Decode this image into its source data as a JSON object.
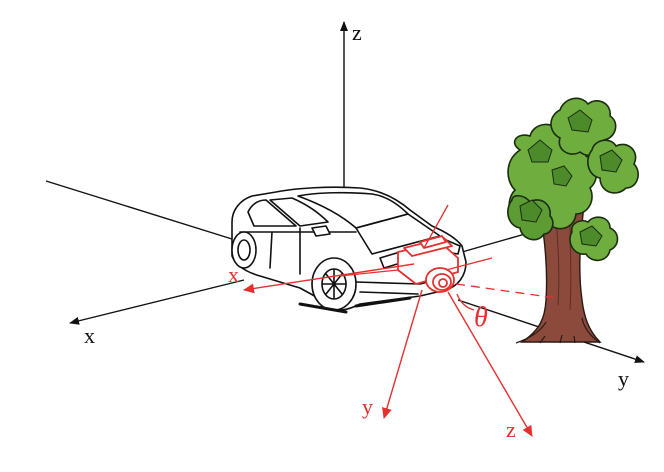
{
  "figure": {
    "world_axes": {
      "x_label": "x",
      "y_label": "y",
      "z_label": "z"
    },
    "camera_axes": {
      "x_label": "x",
      "y_label": "y",
      "z_label": "z"
    },
    "angle_label": "θ",
    "objects": [
      "car",
      "camera",
      "tree"
    ]
  },
  "colors": {
    "world_axis": "#111111",
    "camera": "#e53030",
    "tree_trunk": "#8b4a3c",
    "tree_foliage": "#6fae3e",
    "tree_foliage_dark": "#4d8a2a",
    "car_outline": "#111111"
  }
}
